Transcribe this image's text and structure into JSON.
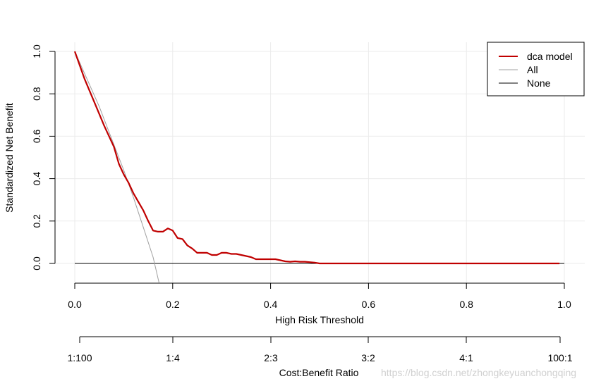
{
  "chart_data": {
    "type": "line",
    "title": "",
    "xlabel": "High Risk Threshold",
    "ylabel": "Standardized Net Benefit",
    "xlim": [
      0.0,
      1.0
    ],
    "ylim": [
      -0.09,
      1.0
    ],
    "x_ticks": [
      "0.0",
      "0.2",
      "0.4",
      "0.6",
      "0.8",
      "1.0"
    ],
    "y_ticks": [
      "0.0",
      "0.2",
      "0.4",
      "0.6",
      "0.8",
      "1.0"
    ],
    "grid": true,
    "legend_position": "top-right",
    "secondary_axis": {
      "label": "Cost:Benefit Ratio",
      "ticks": [
        "1:100",
        "1:4",
        "2:3",
        "3:2",
        "4:1",
        "100:1"
      ]
    },
    "series": [
      {
        "name": "dca model",
        "color": "#c00000",
        "x": [
          0.0,
          0.02,
          0.04,
          0.06,
          0.08,
          0.09,
          0.1,
          0.11,
          0.12,
          0.13,
          0.14,
          0.15,
          0.16,
          0.17,
          0.18,
          0.19,
          0.2,
          0.21,
          0.22,
          0.23,
          0.24,
          0.25,
          0.26,
          0.27,
          0.28,
          0.29,
          0.3,
          0.31,
          0.32,
          0.33,
          0.34,
          0.35,
          0.36,
          0.37,
          0.38,
          0.39,
          0.4,
          0.41,
          0.42,
          0.43,
          0.44,
          0.45,
          0.46,
          0.47,
          0.48,
          0.49,
          0.5,
          0.55,
          0.6,
          0.7,
          0.8,
          0.9,
          0.99
        ],
        "y": [
          1.0,
          0.87,
          0.76,
          0.65,
          0.55,
          0.47,
          0.42,
          0.38,
          0.33,
          0.29,
          0.25,
          0.2,
          0.155,
          0.15,
          0.15,
          0.165,
          0.155,
          0.12,
          0.115,
          0.085,
          0.07,
          0.05,
          0.05,
          0.05,
          0.04,
          0.04,
          0.05,
          0.05,
          0.045,
          0.045,
          0.04,
          0.035,
          0.03,
          0.02,
          0.02,
          0.02,
          0.02,
          0.02,
          0.015,
          0.01,
          0.008,
          0.01,
          0.008,
          0.008,
          0.006,
          0.004,
          0.0,
          0.0,
          0.0,
          0.0,
          0.0,
          0.0,
          0.0
        ]
      },
      {
        "name": "All",
        "color": "#a0a0a0",
        "x": [
          0.0,
          0.05,
          0.1,
          0.12,
          0.14,
          0.16,
          0.172
        ],
        "y": [
          1.0,
          0.74,
          0.44,
          0.31,
          0.17,
          0.03,
          -0.09
        ]
      },
      {
        "name": "None",
        "color": "#000000",
        "x": [
          0.0,
          1.0
        ],
        "y": [
          0.0,
          0.0
        ]
      }
    ]
  },
  "legend": {
    "items": [
      "dca model",
      "All",
      "None"
    ]
  },
  "watermark": "https://blog.csdn.net/zhongkeyuanchongqing"
}
